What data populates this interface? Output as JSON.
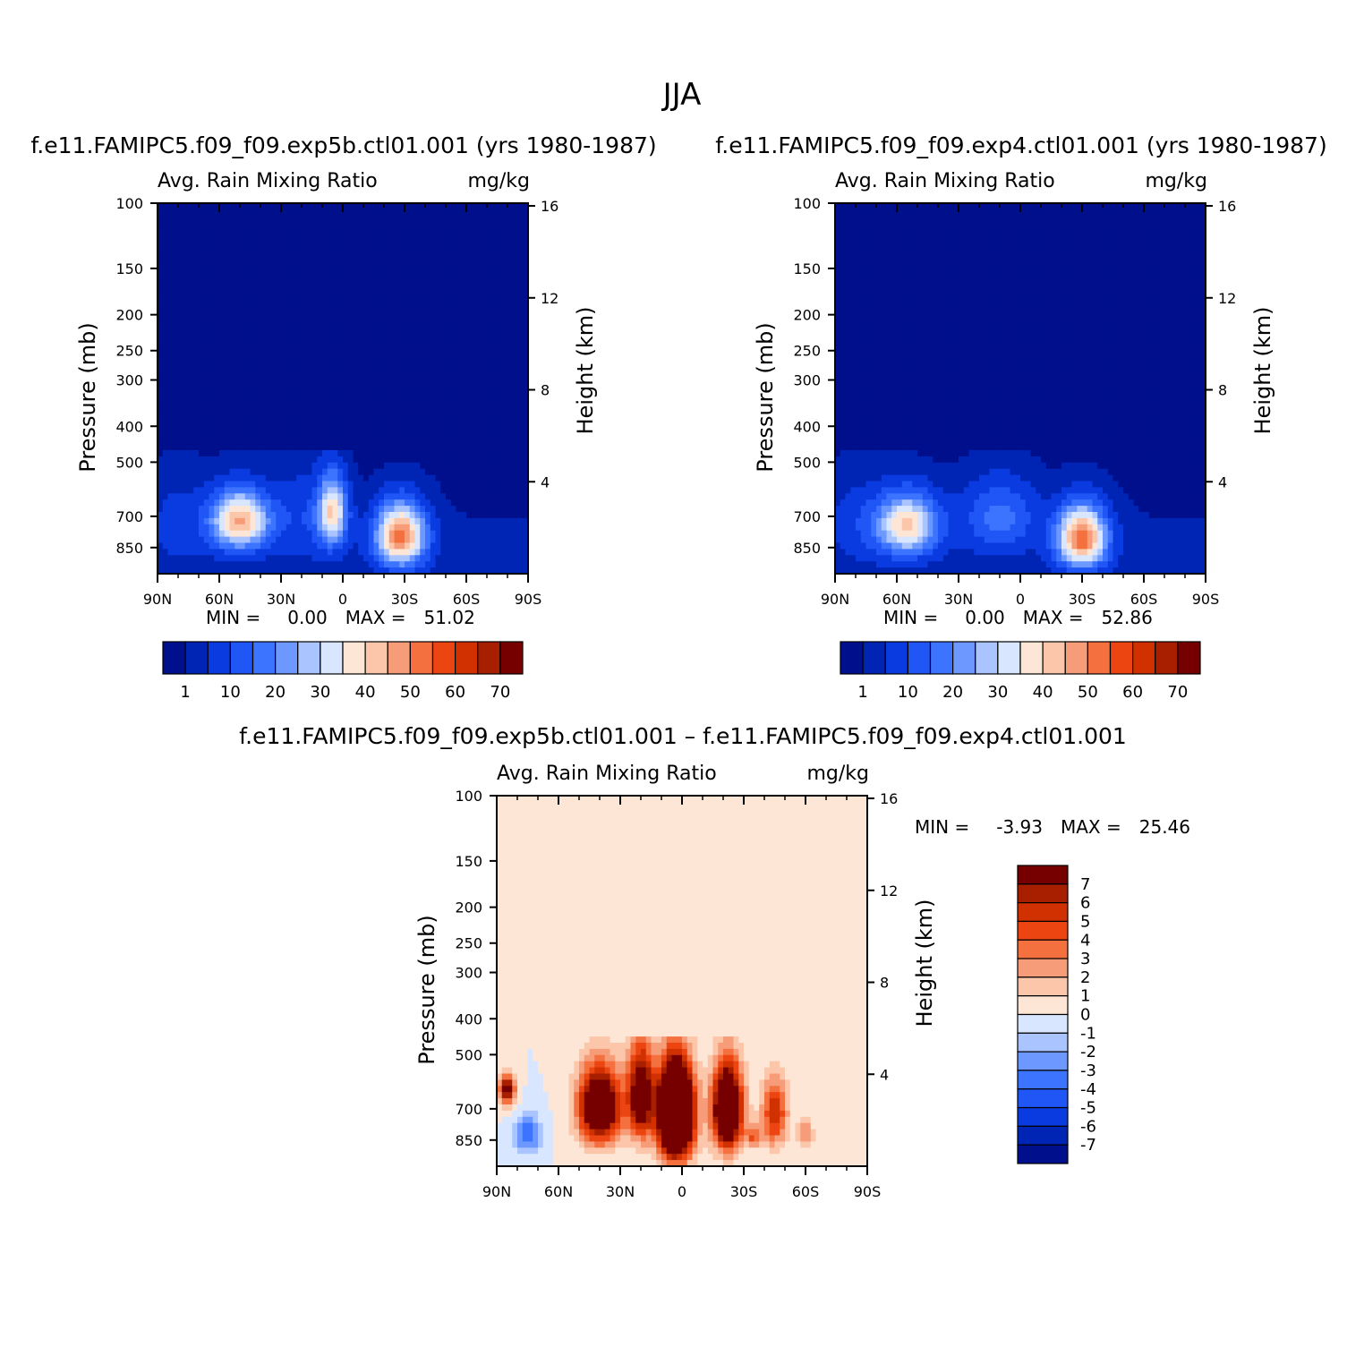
{
  "figure": {
    "title": "JJA",
    "colors": {
      "abs_levels": [
        "#000f8c",
        "#0025b4",
        "#0a3be0",
        "#1f56f5",
        "#3d74ff",
        "#6c98ff",
        "#a9c4ff",
        "#d8e6ff",
        "#fde6d6",
        "#fbc6aa",
        "#f79c78",
        "#f4703f",
        "#ec4512",
        "#d13100",
        "#a81f00",
        "#760000"
      ],
      "diff_levels": [
        "#000f8c",
        "#0025b4",
        "#0a3be0",
        "#1f56f5",
        "#3d74ff",
        "#6c98ff",
        "#a9c4ff",
        "#d8e6ff",
        "#fde6d6",
        "#fbc6aa",
        "#f79c78",
        "#f4703f",
        "#ec4512",
        "#d13100",
        "#a81f00",
        "#760000"
      ]
    }
  },
  "chart_data": [
    {
      "type": "heatmap",
      "id": "panel1",
      "case_title": "f.e11.FAMIPC5.f09_f09.exp5b.ctl01.001 (yrs 1980-1987)",
      "left_label": "Avg. Rain Mixing Ratio",
      "right_label": "mg/kg",
      "x_ticks": [
        "90N",
        "60N",
        "30N",
        "0",
        "30S",
        "60S",
        "90S"
      ],
      "x_range": [
        90,
        -90
      ],
      "ylabel": "Pressure (mb)",
      "y_ticks": [
        100,
        150,
        200,
        250,
        300,
        400,
        500,
        700,
        850
      ],
      "y_range_mb": [
        100,
        1000
      ],
      "y2label": "Height (km)",
      "y2_ticks": [
        16,
        12,
        8,
        4
      ],
      "min_label": "MIN =",
      "min_value": "0.00",
      "max_label": "MAX =",
      "max_value": "51.02",
      "colorbar_labels": [
        "1",
        "10",
        "20",
        "30",
        "40",
        "50",
        "60",
        "70"
      ],
      "colorbar_levels": [
        1,
        5,
        10,
        15,
        20,
        25,
        30,
        35,
        40,
        45,
        50,
        55,
        60,
        65,
        70
      ],
      "blobs": [
        {
          "lat": 50,
          "p": 720,
          "amp": 45,
          "wlat": 14,
          "wp": 130
        },
        {
          "lat": 5,
          "p": 680,
          "amp": 38,
          "wlat": 7,
          "wp": 150
        },
        {
          "lat": -28,
          "p": 790,
          "amp": 52,
          "wlat": 12,
          "wp": 150
        },
        {
          "lat": 80,
          "p": 720,
          "amp": 6,
          "wlat": 15,
          "wp": 200
        },
        {
          "lat": 20,
          "p": 700,
          "amp": 8,
          "wlat": 15,
          "wp": 200
        }
      ]
    },
    {
      "type": "heatmap",
      "id": "panel2",
      "case_title": "f.e11.FAMIPC5.f09_f09.exp4.ctl01.001 (yrs 1980-1987)",
      "left_label": "Avg. Rain Mixing Ratio",
      "right_label": "mg/kg",
      "x_ticks": [
        "90N",
        "60N",
        "30N",
        "0",
        "30S",
        "60S",
        "90S"
      ],
      "x_range": [
        90,
        -90
      ],
      "ylabel": "Pressure (mb)",
      "y_ticks": [
        100,
        150,
        200,
        250,
        300,
        400,
        500,
        700,
        850
      ],
      "y_range_mb": [
        100,
        1000
      ],
      "y2label": "Height (km)",
      "y2_ticks": [
        16,
        12,
        8,
        4
      ],
      "min_label": "MIN =",
      "min_value": "0.00",
      "max_label": "MAX =",
      "max_value": "52.86",
      "colorbar_labels": [
        "1",
        "10",
        "20",
        "30",
        "40",
        "50",
        "60",
        "70"
      ],
      "colorbar_levels": [
        1,
        5,
        10,
        15,
        20,
        25,
        30,
        35,
        40,
        45,
        50,
        55,
        60,
        65,
        70
      ],
      "blobs": [
        {
          "lat": 55,
          "p": 740,
          "amp": 40,
          "wlat": 15,
          "wp": 140
        },
        {
          "lat": -30,
          "p": 800,
          "amp": 53,
          "wlat": 12,
          "wp": 150
        },
        {
          "lat": 10,
          "p": 700,
          "amp": 16,
          "wlat": 18,
          "wp": 160
        },
        {
          "lat": 80,
          "p": 720,
          "amp": 6,
          "wlat": 15,
          "wp": 200
        }
      ]
    },
    {
      "type": "heatmap",
      "id": "panel3",
      "case_title": "f.e11.FAMIPC5.f09_f09.exp5b.ctl01.001 – f.e11.FAMIPC5.f09_f09.exp4.ctl01.001",
      "left_label": "Avg. Rain Mixing Ratio",
      "right_label": "mg/kg",
      "x_ticks": [
        "90N",
        "60N",
        "30N",
        "0",
        "30S",
        "60S",
        "90S"
      ],
      "x_range": [
        90,
        -90
      ],
      "ylabel": "Pressure (mb)",
      "y_ticks": [
        100,
        150,
        200,
        250,
        300,
        400,
        500,
        700,
        850
      ],
      "y_range_mb": [
        100,
        1000
      ],
      "y2label": "Height (km)",
      "y2_ticks": [
        16,
        12,
        8,
        4
      ],
      "min_label": "MIN =",
      "min_value": "-3.93",
      "max_label": "MAX =",
      "max_value": "25.46",
      "colorbar_labels": [
        "7",
        "6",
        "5",
        "4",
        "3",
        "2",
        "1",
        "0",
        "-1",
        "-2",
        "-3",
        "-4",
        "-5",
        "-6",
        "-7"
      ],
      "colorbar_levels": [
        -7,
        -6,
        -5,
        -4,
        -3,
        -2,
        -1,
        0,
        1,
        2,
        3,
        4,
        5,
        6,
        7
      ],
      "blobs": [
        {
          "lat": 3,
          "p": 720,
          "amp": 22,
          "wlat": 8,
          "wp": 200
        },
        {
          "lat": -22,
          "p": 700,
          "amp": 14,
          "wlat": 7,
          "wp": 180
        },
        {
          "lat": 40,
          "p": 690,
          "amp": 12,
          "wlat": 10,
          "wp": 160
        },
        {
          "lat": 20,
          "p": 640,
          "amp": 10,
          "wlat": 6,
          "wp": 180
        },
        {
          "lat": 85,
          "p": 620,
          "amp": 8,
          "wlat": 4,
          "wp": 60
        },
        {
          "lat": -45,
          "p": 720,
          "amp": 6,
          "wlat": 6,
          "wp": 150
        },
        {
          "lat": 75,
          "p": 820,
          "amp": -4,
          "wlat": 6,
          "wp": 100
        },
        {
          "lat": -35,
          "p": 830,
          "amp": 4,
          "wlat": 4,
          "wp": 60
        },
        {
          "lat": -60,
          "p": 820,
          "amp": 3,
          "wlat": 4,
          "wp": 80
        }
      ]
    }
  ]
}
